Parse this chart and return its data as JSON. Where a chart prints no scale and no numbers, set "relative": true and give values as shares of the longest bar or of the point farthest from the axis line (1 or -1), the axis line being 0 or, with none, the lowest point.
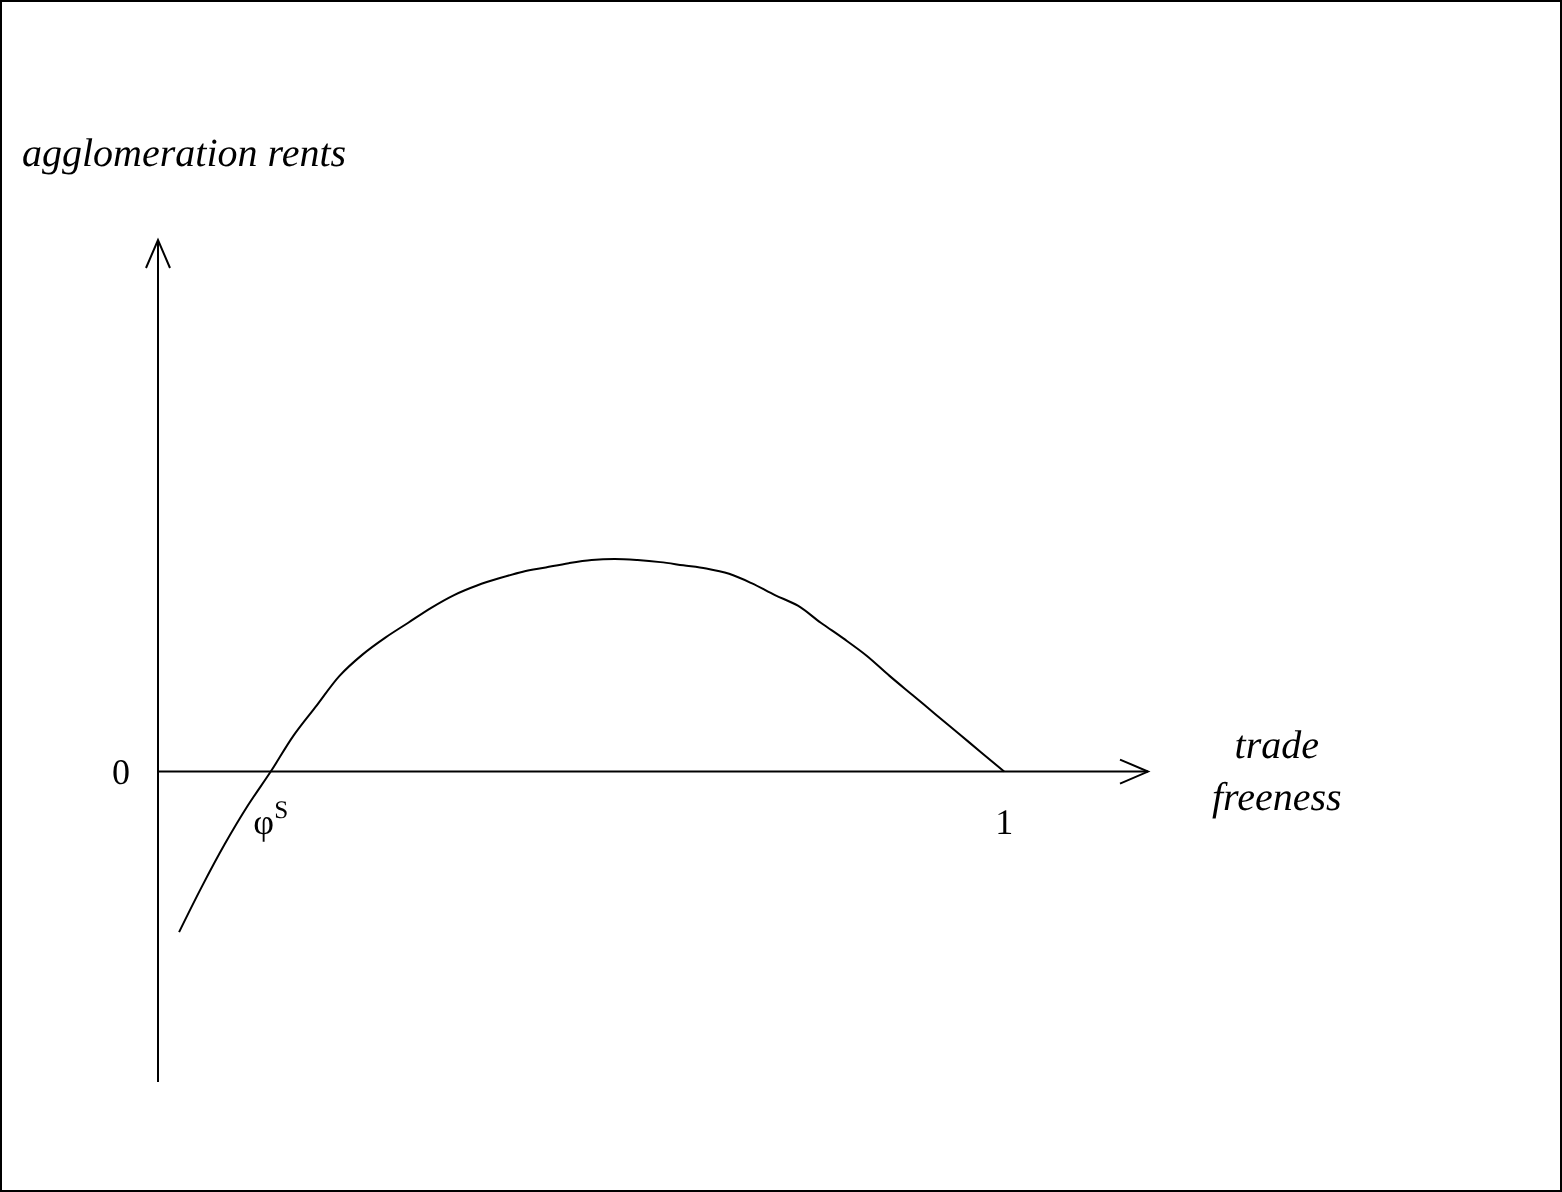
{
  "chart_data": {
    "type": "line",
    "relative": true,
    "xlabel": "trade freeness",
    "annotations": [
      "agglomeration rents",
      "0"
    ],
    "categories": [
      null,
      null,
      null,
      null,
      "φ$^{S}$",
      null,
      null,
      null,
      null,
      null,
      null,
      null,
      null,
      null,
      null,
      null,
      null,
      null,
      null,
      null,
      null,
      null,
      null,
      null,
      null,
      null,
      null,
      null,
      null,
      null,
      null,
      null,
      null,
      null,
      null,
      null,
      "1"
    ],
    "series": [
      {
        "color": "#000000",
        "values": [
          -0.755,
          -0.54,
          -0.34,
          -0.16,
          0,
          0.17,
          0.31,
          0.45,
          0.55,
          0.63,
          0.7,
          0.77,
          0.83,
          0.875,
          0.91,
          0.94,
          0.96,
          0.98,
          0.995,
          1,
          0.995,
          0.985,
          0.97,
          0.955,
          0.93,
          0.885,
          0.83,
          0.78,
          0.7,
          0.625,
          0.545,
          0.45,
          0.36,
          0.27,
          0.18,
          0.09,
          0
        ]
      }
    ],
    "grid": false
  }
}
